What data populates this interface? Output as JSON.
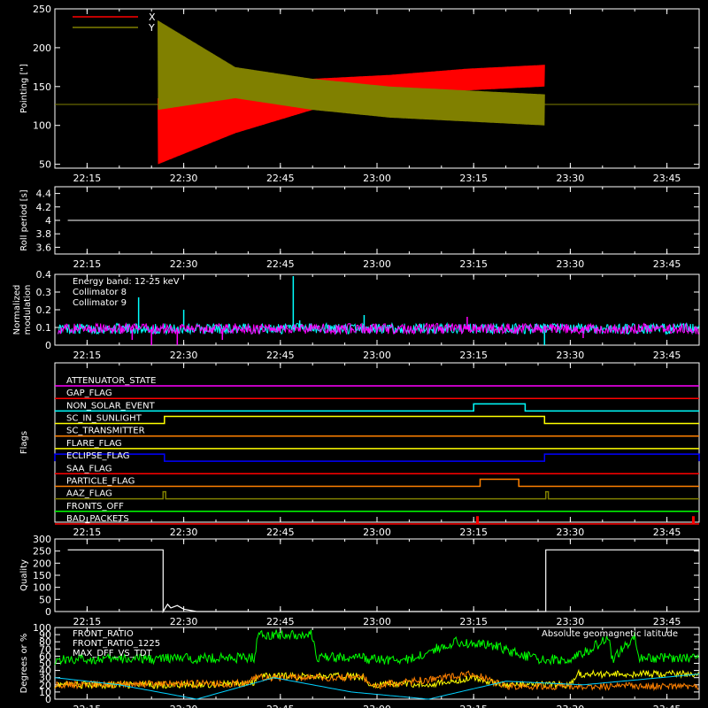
{
  "figure": {
    "background": "#000000",
    "axis_color": "#ffffff"
  },
  "chart_data": [
    {
      "type": "line",
      "ylabel": "Pointing [\"]",
      "ylim": [
        45,
        250
      ],
      "yticks": [
        50,
        100,
        150,
        200,
        250
      ],
      "xticks": [
        "22:15",
        "22:30",
        "22:45",
        "23:00",
        "23:15",
        "23:30",
        "23:45"
      ],
      "xlim_minutes": [
        1330,
        1430
      ],
      "legend_position": "top-left",
      "series": [
        {
          "name": "X",
          "color": "#ff0000",
          "segments": [
            {
              "x": [
                1330,
                1346
              ],
              "y": [
                127,
                127
              ]
            },
            {
              "envelope": true,
              "t0": 1346,
              "t1": 1406,
              "upper": [
                135,
                145,
                160,
                165,
                173,
                178
              ],
              "lower": [
                50,
                90,
                120,
                135,
                145,
                150
              ]
            },
            {
              "x": [
                1406,
                1430
              ],
              "y": [
                127,
                127
              ]
            }
          ]
        },
        {
          "name": "Y",
          "color": "#808000",
          "segments": [
            {
              "x": [
                1330,
                1346
              ],
              "y": [
                127,
                127
              ]
            },
            {
              "envelope": true,
              "t0": 1346,
              "t1": 1406,
              "upper": [
                235,
                175,
                160,
                150,
                145,
                140
              ],
              "lower": [
                120,
                135,
                120,
                110,
                105,
                100
              ]
            },
            {
              "x": [
                1406,
                1430
              ],
              "y": [
                127,
                127
              ]
            }
          ]
        }
      ]
    },
    {
      "type": "line",
      "ylabel": "Roll period [s]",
      "ylim": [
        3.5,
        4.5
      ],
      "yticks": [
        3.6,
        3.8,
        4.0,
        4.2,
        4.4
      ],
      "xticks": [
        "22:15",
        "22:30",
        "22:45",
        "23:00",
        "23:15",
        "23:30",
        "23:45"
      ],
      "series": [
        {
          "name": "",
          "color": "#ffffff",
          "x": [
            1332,
            1430
          ],
          "y": [
            4.0,
            4.0
          ]
        }
      ]
    },
    {
      "type": "line",
      "ylabel": "Normalized modulation",
      "ylim": [
        0,
        0.4
      ],
      "yticks": [
        0,
        0.1,
        0.2,
        0.3,
        0.4
      ],
      "xticks": [
        "22:15",
        "22:30",
        "22:45",
        "23:00",
        "23:15",
        "23:30",
        "23:45"
      ],
      "annotation": "Energy band: 12-25 keV",
      "series": [
        {
          "name": "Collimator 8",
          "color": "#00ffff",
          "baseline": 0.09,
          "spikes": [
            {
              "x": 1343,
              "y": 0.27
            },
            {
              "x": 1350,
              "y": 0.2
            },
            {
              "x": 1367,
              "y": 0.39
            },
            {
              "x": 1368,
              "y": 0.14
            },
            {
              "x": 1406,
              "y": 0.0
            },
            {
              "x": 1378,
              "y": 0.17
            }
          ]
        },
        {
          "name": "Collimator 9",
          "color": "#ff00ff",
          "baseline": 0.09,
          "spikes": [
            {
              "x": 1342,
              "y": 0.03
            },
            {
              "x": 1345,
              "y": 0.0
            },
            {
              "x": 1349,
              "y": 0.0
            },
            {
              "x": 1356,
              "y": 0.03
            },
            {
              "x": 1394,
              "y": 0.16
            },
            {
              "x": 1412,
              "y": 0.04
            }
          ]
        }
      ]
    },
    {
      "type": "line",
      "ylabel": "Flags",
      "xticks": [
        "22:15",
        "22:30",
        "22:45",
        "23:00",
        "23:15",
        "23:30",
        "23:45"
      ],
      "series": [
        {
          "name": "ATTENUATOR_STATE",
          "color": "#ff00ff",
          "events": []
        },
        {
          "name": "GAP_FLAG",
          "color": "#ff0000",
          "events": []
        },
        {
          "name": "NON_SOLAR_EVENT",
          "color": "#00ffff",
          "events": [
            [
              1395,
              1403
            ]
          ]
        },
        {
          "name": "SC_IN_SUNLIGHT",
          "color": "#ffff00",
          "events": [
            [
              1347,
              1406
            ]
          ]
        },
        {
          "name": "SC_TRANSMITTER",
          "color": "#ff8000",
          "events": []
        },
        {
          "name": "FLARE_FLAG",
          "color": "#ffff00",
          "events": []
        },
        {
          "name": "ECLIPSE_FLAG",
          "color": "#0000ff",
          "events": [
            [
              1330,
              1347
            ],
            [
              1406,
              1430
            ]
          ]
        },
        {
          "name": "SAA_FLAG",
          "color": "#ff0000",
          "events": []
        },
        {
          "name": "PARTICLE_FLAG",
          "color": "#ff8000",
          "events": [
            [
              1396,
              1402
            ]
          ]
        },
        {
          "name": "AAZ_FLAG",
          "color": "#808000",
          "events": [
            [
              1346.8,
              1347.2
            ],
            [
              1406.2,
              1406.6
            ]
          ]
        },
        {
          "name": "FRONTS_OFF",
          "color": "#00ff00",
          "events": []
        },
        {
          "name": "BAD_PACKETS",
          "color": "#ff0000",
          "events": [
            [
              1395.5,
              1395.7
            ],
            [
              1429.0,
              1429.2
            ]
          ]
        }
      ]
    },
    {
      "type": "line",
      "ylabel": "Quality",
      "ylim": [
        0,
        300
      ],
      "yticks": [
        0,
        50,
        100,
        150,
        200,
        250,
        300
      ],
      "xticks": [
        "22:15",
        "22:30",
        "22:45",
        "23:00",
        "23:15",
        "23:30",
        "23:45"
      ],
      "series": [
        {
          "name": "",
          "color": "#ffffff",
          "x": [
            1332,
            1346.8,
            1346.8,
            1347.5,
            1348,
            1349,
            1350,
            1352,
            1406.2,
            1406.2,
            1430
          ],
          "y": [
            255,
            255,
            0,
            30,
            15,
            25,
            10,
            0,
            0,
            255,
            255
          ]
        }
      ]
    },
    {
      "type": "line",
      "ylabel": "Degrees or %",
      "ylim": [
        0,
        100
      ],
      "yticks": [
        0,
        10,
        20,
        30,
        40,
        50,
        60,
        70,
        80,
        90,
        100
      ],
      "xticks": [
        "22:15",
        "22:30",
        "22:45",
        "23:00",
        "23:15",
        "23:30",
        "23:45"
      ],
      "annotation": "Absolute geomagnetic latitude",
      "series": [
        {
          "name": "FRONT_RATIO",
          "color": "#ffff00",
          "x": [
            1330,
            1350,
            1361,
            1361.5,
            1378,
            1378.5,
            1390,
            1395,
            1400,
            1410,
            1411,
            1430
          ],
          "y": [
            20,
            20,
            22,
            32,
            32,
            20,
            22,
            30,
            20,
            20,
            35,
            35
          ]
        },
        {
          "name": "FRONT_RATIO_1225",
          "color": "#00ff00",
          "x": [
            1330,
            1361,
            1361.5,
            1370,
            1370.5,
            1378,
            1378.5,
            1385,
            1392,
            1398,
            1405,
            1410,
            1416,
            1416.5,
            1420,
            1420.5,
            1430
          ],
          "y": [
            55,
            58,
            90,
            90,
            58,
            58,
            55,
            55,
            80,
            75,
            55,
            55,
            85,
            55,
            88,
            58,
            58
          ]
        },
        {
          "name": "MAX_DFF_VS_TDT",
          "color": "#ff8000",
          "x": [
            1330,
            1360,
            1361,
            1378,
            1379,
            1395,
            1400,
            1430
          ],
          "y": [
            20,
            22,
            30,
            30,
            18,
            35,
            18,
            18
          ]
        },
        {
          "name": "",
          "color": "#00d0ff",
          "x": [
            1330,
            1340,
            1352,
            1364,
            1376,
            1388,
            1400,
            1412,
            1424,
            1430
          ],
          "y": [
            30,
            20,
            0,
            30,
            10,
            0,
            25,
            20,
            30,
            35
          ]
        }
      ]
    }
  ]
}
